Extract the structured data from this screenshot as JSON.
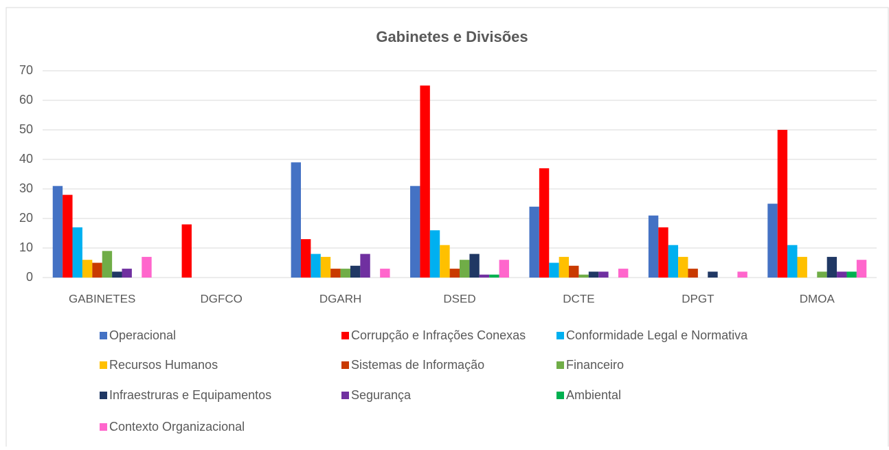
{
  "chart_data": {
    "type": "bar",
    "title": "Gabinetes e Divisões",
    "categories": [
      "GABINETES",
      "DGFCO",
      "DGARH",
      "DSED",
      "DCTE",
      "DPGT",
      "DMOA"
    ],
    "series": [
      {
        "name": "Operacional",
        "color": "#4472c4",
        "values": [
          31,
          0,
          39,
          31,
          24,
          21,
          25
        ]
      },
      {
        "name": "Corrupção e Infrações Conexas",
        "color": "#ff0000",
        "values": [
          28,
          18,
          13,
          65,
          37,
          17,
          50
        ]
      },
      {
        "name": "Conformidade Legal e Normativa",
        "color": "#00b0f0",
        "values": [
          17,
          0,
          8,
          16,
          5,
          11,
          11
        ]
      },
      {
        "name": "Recursos Humanos",
        "color": "#ffc000",
        "values": [
          6,
          0,
          7,
          11,
          7,
          7,
          7
        ]
      },
      {
        "name": "Sistemas de Informação",
        "color": "#c93a00",
        "values": [
          5,
          0,
          3,
          3,
          4,
          3,
          0
        ]
      },
      {
        "name": "Financeiro",
        "color": "#70ad47",
        "values": [
          9,
          0,
          3,
          6,
          1,
          0,
          2
        ]
      },
      {
        "name": "Infraestruras e Equipamentos",
        "color": "#203864",
        "values": [
          2,
          0,
          4,
          8,
          2,
          2,
          7
        ]
      },
      {
        "name": "Segurança",
        "color": "#7030a0",
        "values": [
          3,
          0,
          8,
          1,
          2,
          0,
          2
        ]
      },
      {
        "name": "Ambiental",
        "color": "#00b050",
        "values": [
          0,
          0,
          0,
          1,
          0,
          0,
          2
        ]
      },
      {
        "name": "Contexto Organizacional",
        "color": "#ff66cc",
        "values": [
          7,
          0,
          3,
          6,
          3,
          2,
          6
        ]
      }
    ],
    "ylim": [
      0,
      70
    ],
    "yticks": [
      0,
      10,
      20,
      30,
      40,
      50,
      60,
      70
    ],
    "grid": true,
    "legend": "bottom"
  }
}
